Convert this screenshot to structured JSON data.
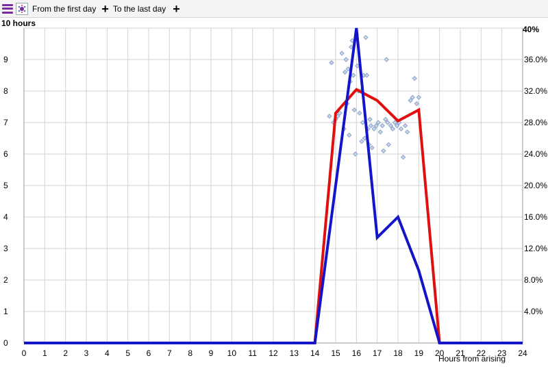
{
  "toolbar": {
    "menu_icon": "menu-icon",
    "filter_icon": "scatter-filter-icon",
    "from_label": "From the first day",
    "to_label": "To the last day",
    "plus_glyph": "+"
  },
  "chart_data": {
    "type": "line",
    "left_axis_title": "10 hours",
    "right_axis_title": "40%",
    "xlabel": "Hours from arising",
    "x": [
      0,
      1,
      2,
      3,
      4,
      5,
      6,
      7,
      8,
      9,
      10,
      11,
      12,
      13,
      14,
      15,
      16,
      17,
      18,
      19,
      20,
      21,
      22,
      23,
      24
    ],
    "xlim": [
      0,
      24
    ],
    "ylim_left": [
      0,
      10
    ],
    "ylim_right": [
      0,
      40
    ],
    "left_ticks": [
      "0",
      "1",
      "2",
      "3",
      "4",
      "5",
      "6",
      "7",
      "8",
      "9"
    ],
    "right_ticks": [
      "4.0%",
      "8.0%",
      "12.0%",
      "16.0%",
      "20.0%",
      "24.0%",
      "28.0%",
      "32.0%",
      "36.0%"
    ],
    "grid": true,
    "series": [
      {
        "color": "#e01010",
        "axis": "left",
        "points": [
          [
            0,
            0
          ],
          [
            14,
            0
          ],
          [
            15,
            7.3
          ],
          [
            16,
            8.05
          ],
          [
            17,
            7.7
          ],
          [
            18,
            7.05
          ],
          [
            19,
            7.4
          ],
          [
            20,
            0
          ],
          [
            24,
            0
          ]
        ]
      },
      {
        "color": "#1414c8",
        "axis": "right",
        "points": [
          [
            0,
            0
          ],
          [
            14,
            0
          ],
          [
            15,
            20.0
          ],
          [
            16,
            40.0
          ],
          [
            17,
            13.4
          ],
          [
            18,
            16.0
          ],
          [
            19,
            9.2
          ],
          [
            20,
            0
          ],
          [
            24,
            0
          ]
        ]
      },
      {
        "type": "scatter",
        "color": "#8aa2c8",
        "axis": "left",
        "points": [
          [
            14.7,
            7.2
          ],
          [
            14.8,
            8.9
          ],
          [
            14.9,
            7.0
          ],
          [
            15.0,
            7.1
          ],
          [
            15.1,
            7.2
          ],
          [
            15.2,
            7.3
          ],
          [
            15.3,
            9.2
          ],
          [
            15.4,
            6.8
          ],
          [
            15.45,
            8.6
          ],
          [
            15.5,
            9.0
          ],
          [
            15.55,
            7.6
          ],
          [
            15.6,
            8.7
          ],
          [
            15.65,
            6.6
          ],
          [
            15.7,
            8.3
          ],
          [
            15.75,
            9.4
          ],
          [
            15.8,
            9.6
          ],
          [
            15.85,
            8.5
          ],
          [
            15.9,
            7.4
          ],
          [
            15.95,
            6.0
          ],
          [
            16.0,
            9.8
          ],
          [
            16.05,
            8.8
          ],
          [
            16.1,
            8.0
          ],
          [
            16.15,
            7.3
          ],
          [
            16.2,
            8.0
          ],
          [
            16.25,
            6.4
          ],
          [
            16.3,
            7.0
          ],
          [
            16.35,
            8.5
          ],
          [
            16.4,
            6.5
          ],
          [
            16.45,
            9.7
          ],
          [
            16.5,
            8.5
          ],
          [
            16.55,
            6.8
          ],
          [
            16.6,
            6.3
          ],
          [
            16.65,
            7.1
          ],
          [
            16.7,
            6.9
          ],
          [
            16.75,
            6.2
          ],
          [
            16.85,
            6.8
          ],
          [
            16.95,
            6.9
          ],
          [
            17.05,
            7.0
          ],
          [
            17.15,
            6.7
          ],
          [
            17.25,
            6.9
          ],
          [
            17.3,
            6.1
          ],
          [
            17.4,
            7.1
          ],
          [
            17.45,
            9.0
          ],
          [
            17.5,
            7.0
          ],
          [
            17.55,
            6.3
          ],
          [
            17.65,
            6.9
          ],
          [
            17.75,
            6.8
          ],
          [
            17.85,
            7.0
          ],
          [
            17.95,
            6.9
          ],
          [
            18.05,
            7.0
          ],
          [
            18.15,
            6.8
          ],
          [
            18.25,
            5.9
          ],
          [
            18.35,
            6.9
          ],
          [
            18.45,
            6.7
          ],
          [
            18.6,
            7.7
          ],
          [
            18.7,
            7.8
          ],
          [
            18.8,
            8.4
          ],
          [
            18.9,
            7.6
          ],
          [
            19.0,
            7.8
          ]
        ]
      }
    ]
  }
}
